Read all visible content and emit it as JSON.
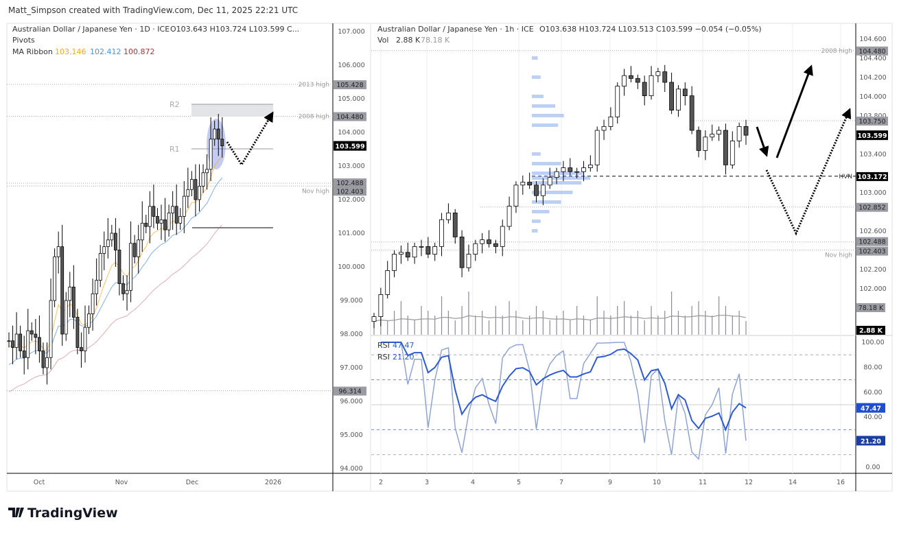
{
  "header": {
    "credit": "Matt_Simpson created with TradingView.com, Dec 11, 2025 22:21 UTC"
  },
  "left_chart": {
    "legend": {
      "title": "Australian Dollar / Japanese Yen · 1D · ICE",
      "ohlc": "O103.643  H103.724  L103.599  C...",
      "pivots": "Pivots",
      "ma_label": "MA Ribbon",
      "ma_values": [
        "103.146",
        "102.412",
        "100.872"
      ],
      "ma_colors": [
        "#f5a623",
        "#4a90e2",
        "#b2303a"
      ]
    },
    "annotations": {
      "r1": "R1",
      "r2": "R2"
    },
    "levels": [
      {
        "label": "2013 high",
        "value": "105.428"
      },
      {
        "label": "2008 high",
        "value": "104.480"
      },
      {
        "label": "",
        "value": "102.488"
      },
      {
        "label": "Nov high",
        "value": "102.403"
      },
      {
        "label": "",
        "value": "96.314"
      }
    ],
    "last_price": "103.599",
    "price_ticks": [
      "107.000",
      "106.000",
      "105.000",
      "104.000",
      "103.000",
      "102.000",
      "101.000",
      "100.000",
      "99.000",
      "98.000",
      "97.000",
      "96.000",
      "95.000",
      "94.000"
    ],
    "time_ticks": [
      "Oct",
      "Nov",
      "Dec",
      "2026"
    ]
  },
  "right_chart": {
    "legend": {
      "title": "Australian Dollar / Japanese Yen · 1h · ICE",
      "ohlc": "O103.638  H103.724  L103.513  C103.599  −0.054 (−0.05%)",
      "vol_label": "Vol",
      "vol_value": "2.88 K",
      "vol_ma": "78.18 K"
    },
    "levels": [
      {
        "label": "2008 high",
        "value": "104.480"
      },
      {
        "label": "",
        "value": "103.750"
      },
      {
        "label": "HVN",
        "value": "103.172"
      },
      {
        "label": "",
        "value": "102.852"
      },
      {
        "label": "",
        "value": "102.488"
      },
      {
        "label": "Nov high",
        "value": "102.403"
      }
    ],
    "last_price": "103.599",
    "vol_badges": [
      "78.18 K",
      "2.88 K"
    ],
    "price_ticks": [
      "104.600",
      "104.400",
      "104.200",
      "104.000",
      "103.800",
      "103.400",
      "103.000",
      "102.600",
      "102.200",
      "102.000"
    ],
    "rsi": {
      "label": "RSI",
      "values": [
        "47.47",
        "21.20"
      ],
      "colors": [
        "#2c5bd1",
        "#8fa3d4"
      ],
      "ticks": [
        "100.00",
        "80.00",
        "60.00",
        "40.00",
        "0.00"
      ]
    },
    "time_ticks": [
      "2",
      "3",
      "4",
      "5",
      "7",
      "9",
      "10",
      "11",
      "12",
      "14",
      "16"
    ]
  },
  "footer": {
    "logo": "TradingView"
  },
  "chart_data": [
    {
      "type": "candlestick",
      "title": "Australian Dollar / Japanese Yen · 1D · ICE",
      "ylim": [
        94,
        107
      ],
      "x_ticks": [
        "Oct",
        "Nov",
        "Dec",
        "2026"
      ],
      "closes": [
        97.8,
        97.6,
        98.0,
        97.5,
        97.3,
        98.1,
        98.0,
        97.9,
        97.5,
        97.0,
        97.3,
        99.0,
        100.3,
        100.6,
        98.0,
        99.0,
        99.4,
        98.5,
        97.6,
        97.5,
        98.2,
        98.6,
        99.2,
        99.6,
        100.4,
        100.6,
        100.8,
        101.0,
        100.5,
        99.5,
        99.2,
        99.3,
        100.7,
        100.3,
        100.8,
        101.3,
        101.2,
        101.8,
        101.5,
        101.3,
        101.4,
        101.1,
        101.6,
        101.8,
        101.3,
        101.5,
        102.1,
        102.3,
        102.6,
        102.0,
        102.4,
        102.8,
        102.9,
        103.8,
        104.1,
        103.8,
        103.6
      ],
      "ma_ribbon": [
        103.146,
        102.412,
        100.872
      ],
      "pivots": {
        "R1": 103.55,
        "R2": 104.84
      }
    },
    {
      "type": "candlestick",
      "title": "Australian Dollar / Japanese Yen · 1h · ICE",
      "ylim": [
        101.6,
        104.7
      ],
      "x_ticks": [
        "2",
        "3",
        "4",
        "5",
        "7",
        "9",
        "10",
        "11",
        "12",
        "14",
        "16"
      ],
      "closes": [
        101.71,
        101.94,
        102.19,
        102.36,
        102.38,
        102.33,
        102.44,
        102.44,
        102.36,
        102.44,
        102.72,
        102.79,
        102.54,
        102.22,
        102.36,
        102.47,
        102.51,
        102.47,
        102.44,
        102.65,
        102.86,
        103.08,
        103.11,
        103.08,
        102.97,
        103.08,
        103.16,
        103.22,
        103.26,
        103.22,
        103.22,
        103.26,
        103.29,
        103.65,
        103.69,
        103.79,
        104.11,
        104.22,
        104.19,
        104.15,
        104.01,
        104.22,
        104.26,
        104.15,
        103.86,
        104.08,
        104.01,
        103.65,
        103.44,
        103.58,
        103.61,
        103.65,
        103.29,
        103.54,
        103.69,
        103.599
      ],
      "volume_k": [
        4,
        6,
        3,
        5,
        7,
        4,
        3,
        6,
        5,
        4,
        8,
        5,
        3,
        6,
        9,
        4,
        5,
        3,
        6,
        4,
        7,
        5,
        3,
        4,
        6,
        5,
        3,
        4,
        5,
        3,
        6,
        4,
        3,
        8,
        5,
        4,
        6,
        7,
        4,
        5,
        3,
        6,
        4,
        5,
        9,
        5,
        4,
        6,
        7,
        5,
        4,
        8,
        6,
        4,
        5,
        2.88
      ],
      "volume_profile_levels": [
        104.4,
        104.2,
        104.0,
        103.9,
        103.8,
        103.7,
        103.4,
        103.3,
        103.2,
        103.15,
        103.1,
        103.0,
        102.9,
        102.8,
        102.7,
        102.6
      ],
      "volume_profile_rel": [
        0.1,
        0.15,
        0.2,
        0.4,
        0.55,
        0.45,
        0.15,
        0.5,
        0.9,
        1.0,
        0.85,
        0.7,
        0.5,
        0.3,
        0.15,
        0.1
      ],
      "rsi_last": [
        47.47,
        21.2
      ]
    }
  ]
}
